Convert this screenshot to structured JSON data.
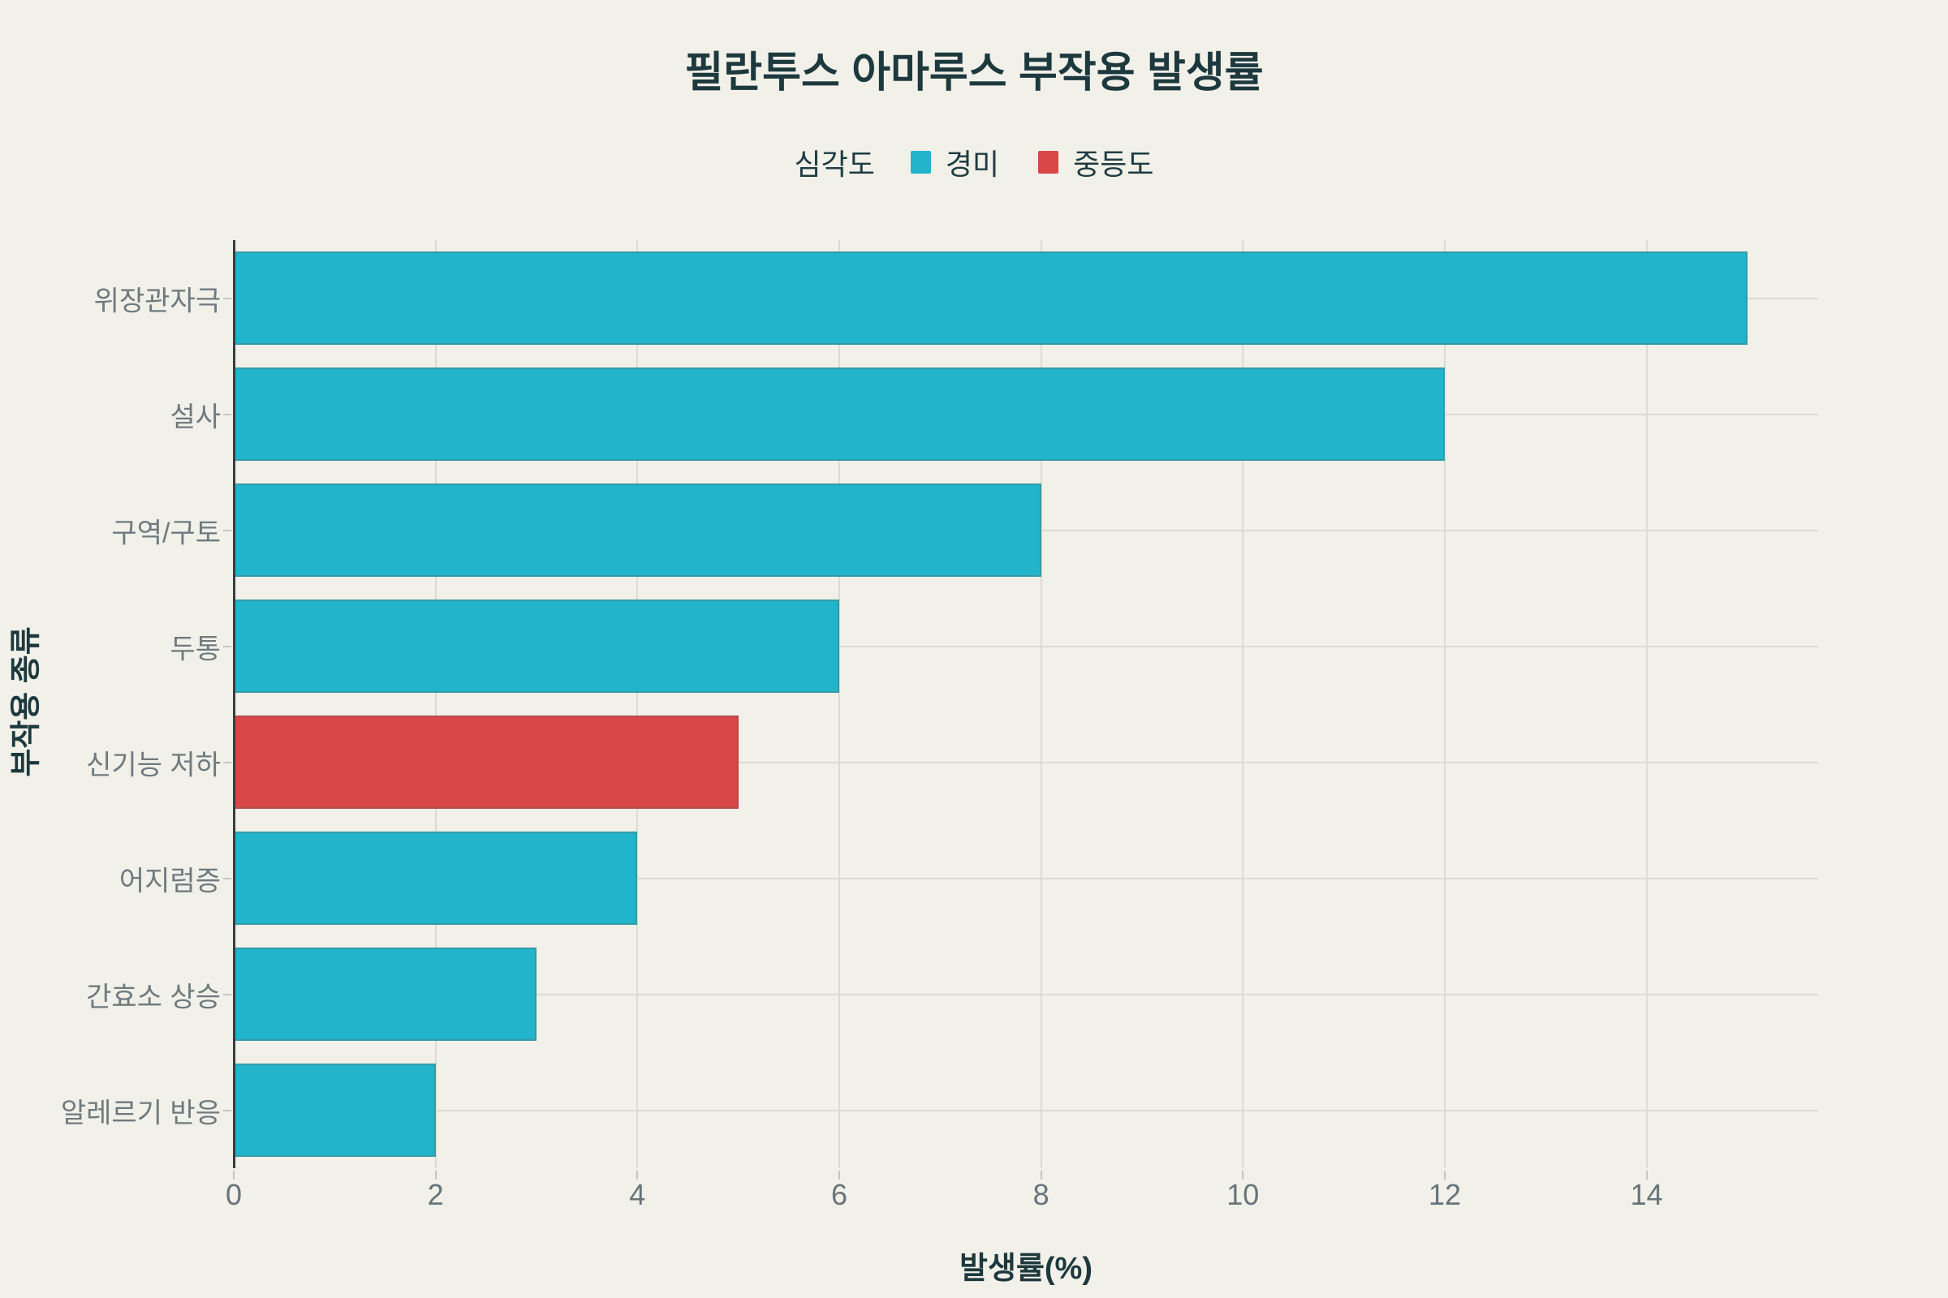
{
  "legend": {
    "title": "심각도",
    "items": [
      {
        "name": "경미",
        "color": "#21b4cb"
      },
      {
        "name": "중등도",
        "color": "#d94646"
      }
    ]
  },
  "chart_data": {
    "type": "bar",
    "orientation": "horizontal",
    "title": "필란투스 아마루스 부작용 발생률",
    "categories": [
      "위장관자극",
      "설사",
      "구역/구토",
      "두통",
      "신기능 저하",
      "어지럼증",
      "간효소 상승",
      "알레르기 반응"
    ],
    "values": [
      15,
      12,
      8,
      6,
      5,
      4,
      3,
      2
    ],
    "severity": [
      "경미",
      "경미",
      "경미",
      "경미",
      "중등도",
      "경미",
      "경미",
      "경미"
    ],
    "severity_colors": {
      "경미": "#21b4cb",
      "중등도": "#d94646"
    },
    "xlabel": "발생률(%)",
    "ylabel": "부작용 종류",
    "xticks": [
      0,
      2,
      4,
      6,
      8,
      10,
      12,
      14
    ],
    "xlim": [
      0,
      15.7
    ],
    "grid": true,
    "legend_title": "심각도",
    "legend_position": "top",
    "background": "#f1f0e9"
  }
}
